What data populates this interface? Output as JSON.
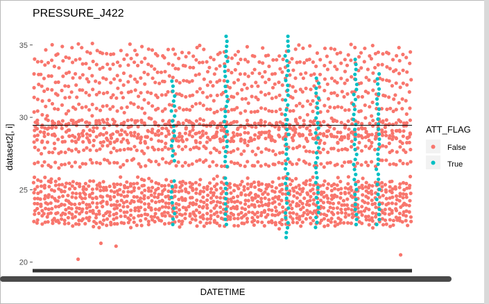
{
  "chart_data": {
    "type": "scatter",
    "title": "PRESSURE_J422",
    "xlabel": "DATETIME",
    "ylabel": "dataset2[, i]",
    "ylim": [
      19.6,
      35.9
    ],
    "yticks": [
      20,
      25,
      30,
      35
    ],
    "x_ticks_visible": false,
    "reference_line_y": 29.45,
    "grid": false,
    "legend": {
      "title": "ATT_FLAG",
      "position": "right",
      "entries": [
        {
          "name": "False",
          "color": "#F8766D"
        },
        {
          "name": "True",
          "color": "#00BFC4"
        }
      ]
    },
    "series": [
      {
        "name": "False",
        "color": "#F8766D",
        "value_bands": [
          [
            22.5,
            25.8
          ],
          [
            26.6,
            35.0
          ]
        ],
        "outliers": [
          [
            0.12,
            20.2
          ],
          [
            0.18,
            21.3
          ],
          [
            0.22,
            21.1
          ],
          [
            0.65,
            22.3
          ],
          [
            0.97,
            20.5
          ]
        ]
      },
      {
        "name": "True",
        "color": "#00BFC4",
        "events": [
          {
            "x": 0.37,
            "ranges": [
              [
                22.6,
                25.6
              ],
              [
                27.0,
                32.5
              ]
            ]
          },
          {
            "x": 0.51,
            "ranges": [
              [
                22.6,
                25.8
              ],
              [
                26.6,
                35.6
              ]
            ]
          },
          {
            "x": 0.67,
            "ranges": [
              [
                21.7,
                35.6
              ]
            ]
          },
          {
            "x": 0.75,
            "ranges": [
              [
                22.4,
                32.7
              ]
            ]
          },
          {
            "x": 0.85,
            "ranges": [
              [
                22.6,
                34.0
              ]
            ]
          },
          {
            "x": 0.91,
            "ranges": [
              [
                22.6,
                33.0
              ]
            ]
          }
        ]
      }
    ]
  }
}
